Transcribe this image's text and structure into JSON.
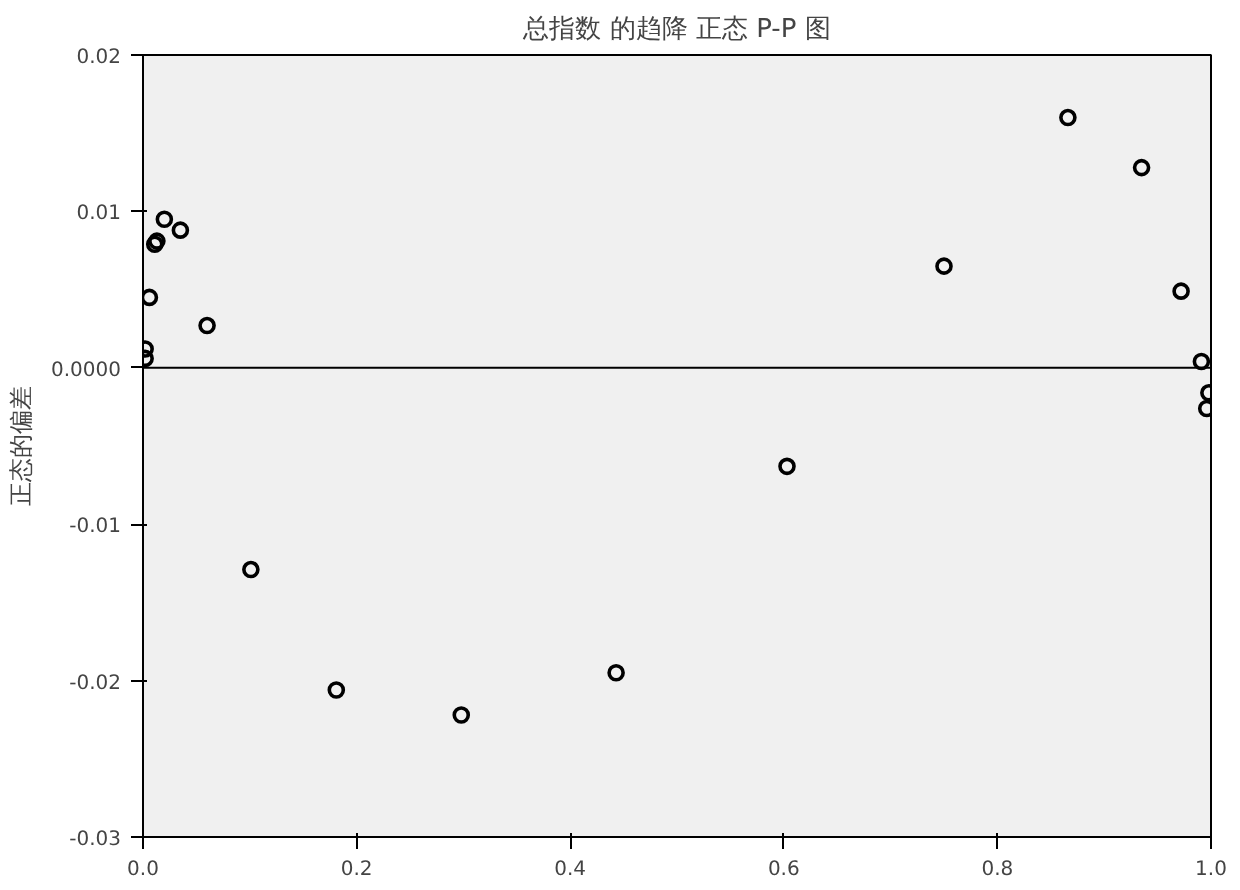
{
  "chart_data": {
    "type": "scatter",
    "title": "总指数 的趋降 正态 P-P 图",
    "ylabel": "正态的偏差",
    "x": [
      0.002,
      0.002,
      0.006,
      0.011,
      0.013,
      0.02,
      0.035,
      0.06,
      0.101,
      0.181,
      0.298,
      0.443,
      0.603,
      0.75,
      0.866,
      0.935,
      0.972,
      0.991,
      0.998,
      0.996
    ],
    "series": [
      {
        "color": "#000000",
        "values": [
          0.0012,
          0.0006,
          0.0045,
          0.0079,
          0.0081,
          0.0095,
          0.0088,
          0.0027,
          -0.0129,
          -0.0206,
          -0.0222,
          -0.0195,
          -0.0063,
          0.0065,
          0.016,
          0.0128,
          0.0049,
          0.0004,
          -0.0016,
          -0.0026
        ]
      }
    ],
    "xlim": [
      0,
      1
    ],
    "ylim": [
      -0.03,
      0.02
    ],
    "xticks": [
      {
        "value": 0,
        "label": "0.0"
      },
      {
        "value": 0.2,
        "label": "0.2"
      },
      {
        "value": 0.4,
        "label": "0.4"
      },
      {
        "value": 0.6,
        "label": "0.6"
      },
      {
        "value": 0.8,
        "label": "0.8"
      },
      {
        "value": 1,
        "label": "1.0"
      }
    ],
    "yticks": [
      {
        "value": -0.03,
        "label": "-0.03"
      },
      {
        "value": -0.02,
        "label": "-0.02"
      },
      {
        "value": -0.01,
        "label": "-0.01"
      },
      {
        "value": 0,
        "label": "0.0000"
      },
      {
        "value": 0.01,
        "label": "0.01"
      },
      {
        "value": 0.02,
        "label": "0.02"
      }
    ],
    "ref_lines": [
      {
        "axis": "y",
        "value": 0,
        "color": "#000000"
      }
    ],
    "marker": "circle",
    "grid": false
  }
}
